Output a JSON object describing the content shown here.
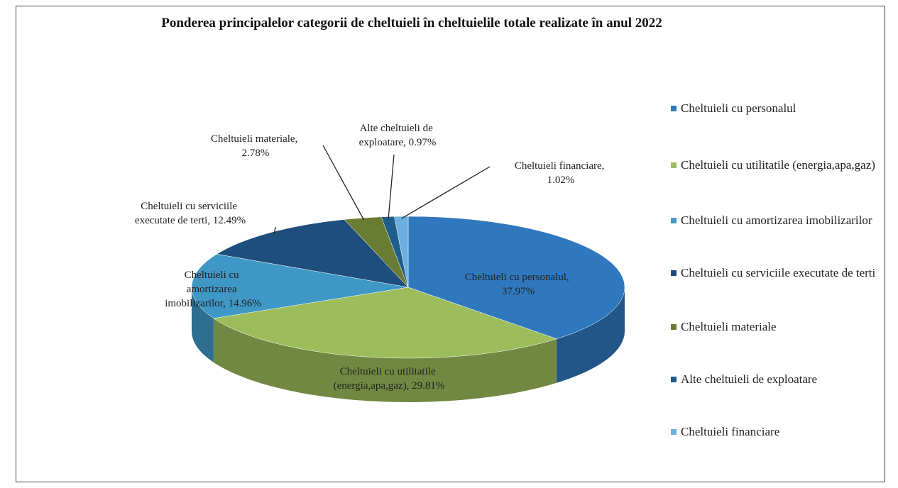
{
  "chart_data": {
    "type": "pie",
    "title": "Ponderea principalelor categorii de cheltuieli în  cheltuielile totale realizate în anul 2022",
    "categories": [
      "Cheltuieli cu personalul",
      "Cheltuieli cu utilitatile (energia,apa,gaz)",
      "Cheltuieli cu amortizarea imobilizarilor",
      "Cheltuieli cu serviciile executate de terti",
      "Cheltuieli materiale",
      "Alte cheltuieli de exploatare",
      "Cheltuieli financiare"
    ],
    "values": [
      37.97,
      29.81,
      14.96,
      12.49,
      2.78,
      0.97,
      1.02
    ],
    "value_labels": [
      "Cheltuieli cu personalul, 37.97%",
      "Cheltuieli cu utilitatile (energia,apa,gaz), 29.81%",
      "Cheltuieli cu amortizarea imobilizarilor, 14.96%",
      "Cheltuieli cu serviciile executate de terti, 12.49%",
      "Cheltuieli materiale, 2.78%",
      "Alte cheltuieli de exploatare, 0.97%",
      "Cheltuieli financiare, 1.02%"
    ],
    "colors": [
      "#2f78bd",
      "#9dbd5c",
      "#3f97c6",
      "#1d4e7e",
      "#6a7c34",
      "#1f5d8a",
      "#6aafe0"
    ],
    "legend": "right"
  }
}
